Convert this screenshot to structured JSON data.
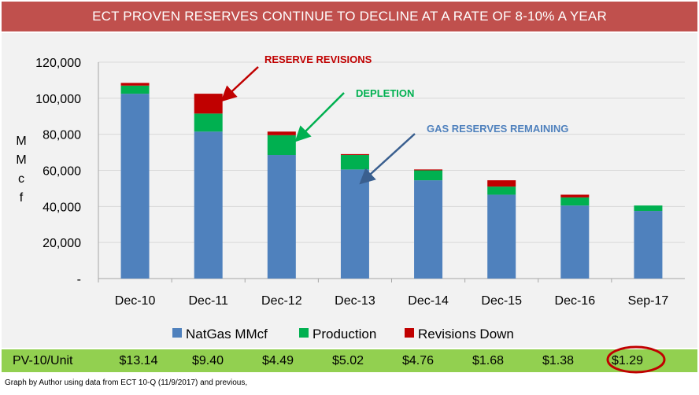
{
  "title": "ECT PROVEN RESERVES CONTINUE TO DECLINE AT A RATE OF 8-10% A YEAR",
  "chart_data": {
    "type": "bar",
    "stacked": true,
    "categories": [
      "Dec-10",
      "Dec-11",
      "Dec-12",
      "Dec-13",
      "Dec-14",
      "Dec-15",
      "Dec-16",
      "Sep-17"
    ],
    "series": [
      {
        "name": "NatGas MMcf",
        "color": "#4f81bd",
        "values": [
          102500,
          81500,
          68500,
          60500,
          54500,
          46500,
          40500,
          37500
        ]
      },
      {
        "name": "Production",
        "color": "#00b050",
        "values": [
          4500,
          10000,
          11000,
          8000,
          5500,
          4500,
          4500,
          3000
        ]
      },
      {
        "name": "Revisions Down",
        "color": "#c00000",
        "values": [
          1500,
          11000,
          2000,
          500,
          500,
          3500,
          1500,
          0
        ]
      }
    ],
    "ylabel": "MMcf",
    "ylabel_chars": [
      "M",
      "M",
      "c",
      "f"
    ],
    "ylim": [
      0,
      120000
    ],
    "yticks": [
      0,
      20000,
      40000,
      60000,
      80000,
      100000,
      120000
    ],
    "ytick_labels": [
      "-",
      "20,000",
      "40,000",
      "60,000",
      "80,000",
      "100,000",
      "120,000"
    ],
    "legend_position": "bottom",
    "annotations": [
      {
        "text": "RESERVE REVISIONS",
        "color": "#c00000"
      },
      {
        "text": "DEPLETION",
        "color": "#00b050"
      },
      {
        "text": "GAS RESERVES REMAINING",
        "color": "#4f81bd"
      }
    ]
  },
  "pv10": {
    "label": "PV-10/Unit",
    "values": [
      "$13.14",
      "$9.40",
      "$4.49",
      "$5.02",
      "$4.76",
      "$1.68",
      "$1.38",
      "$1.29"
    ]
  },
  "highlight_color": "#c00000",
  "footnote": "Graph by Author using data from ECT 10-Q (11/9/2017) and previous,"
}
